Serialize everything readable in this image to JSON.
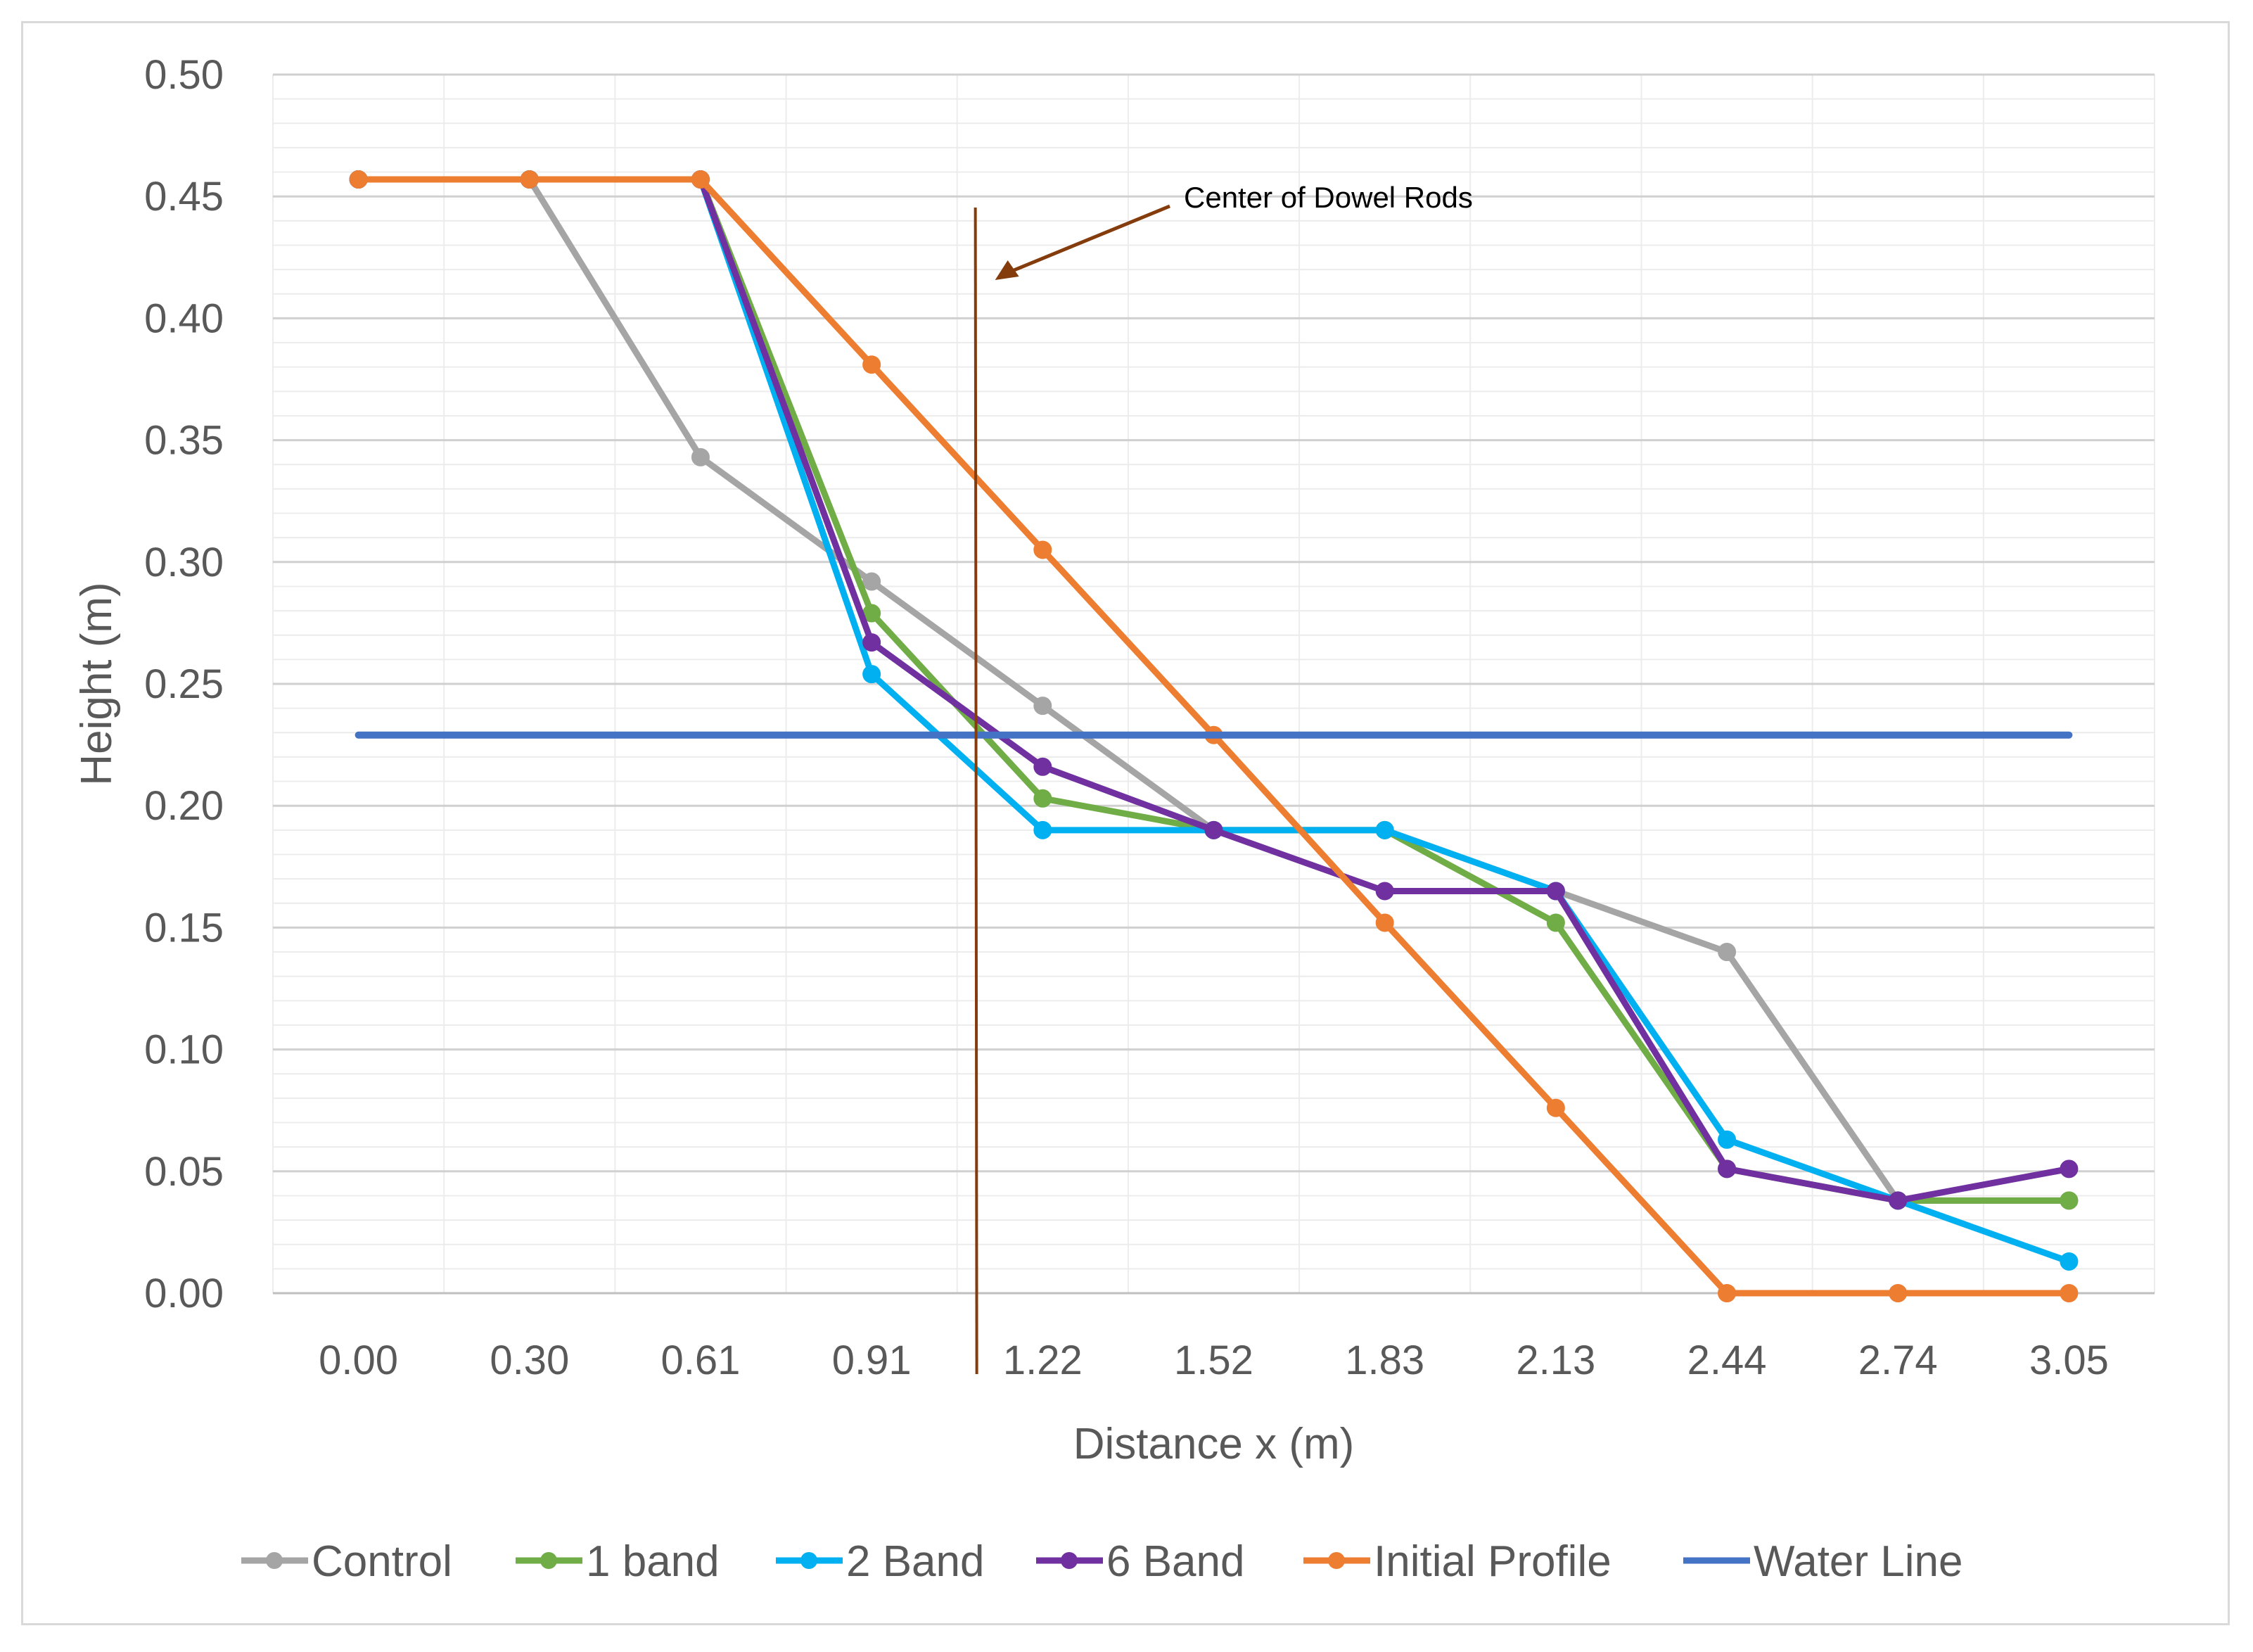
{
  "chart_data": {
    "type": "line",
    "title": "",
    "xlabel": "Distance x (m)",
    "ylabel": "Height (m)",
    "categories": [
      "0.00",
      "0.30",
      "0.61",
      "0.91",
      "1.22",
      "1.52",
      "1.83",
      "2.13",
      "2.44",
      "2.74",
      "3.05"
    ],
    "ylim": [
      0,
      0.5
    ],
    "yticks": [
      "0.00",
      "0.05",
      "0.10",
      "0.15",
      "0.20",
      "0.25",
      "0.30",
      "0.35",
      "0.40",
      "0.45",
      "0.50"
    ],
    "grid": "major and minor horizontal, minor vertical",
    "legend_position": "bottom",
    "series": [
      {
        "name": "Control",
        "color": "#a5a5a5",
        "markers": true,
        "values": [
          0.457,
          0.457,
          0.343,
          0.292,
          0.241,
          0.19,
          0.19,
          0.165,
          0.14,
          0.038,
          0.038
        ]
      },
      {
        "name": "1 band",
        "color": "#70ad47",
        "markers": true,
        "values": [
          0.457,
          0.457,
          0.457,
          0.279,
          0.203,
          0.19,
          0.19,
          0.152,
          0.051,
          0.038,
          0.038
        ]
      },
      {
        "name": "2 Band",
        "color": "#00b0f0",
        "markers": true,
        "values": [
          0.457,
          0.457,
          0.457,
          0.254,
          0.19,
          0.19,
          0.19,
          0.165,
          0.063,
          0.038,
          0.013
        ]
      },
      {
        "name": "6 Band",
        "color": "#7030a0",
        "markers": true,
        "values": [
          0.457,
          0.457,
          0.457,
          0.267,
          0.216,
          0.19,
          0.165,
          0.165,
          0.051,
          0.038,
          0.051
        ]
      },
      {
        "name": "Initial Profile",
        "color": "#ed7d31",
        "markers": true,
        "values": [
          0.457,
          0.457,
          0.457,
          0.381,
          0.305,
          0.229,
          0.152,
          0.076,
          0.0,
          0.0,
          0.0
        ]
      },
      {
        "name": "Water Line",
        "color": "#4472c4",
        "markers": false,
        "values": [
          0.229,
          0.229,
          0.229,
          0.229,
          0.229,
          0.229,
          0.229,
          0.229,
          0.229,
          0.229,
          0.229
        ]
      }
    ],
    "annotations": [
      {
        "text": "Center of Dowel Rods",
        "x_position": 1.1,
        "color": "#843c0c"
      }
    ]
  }
}
